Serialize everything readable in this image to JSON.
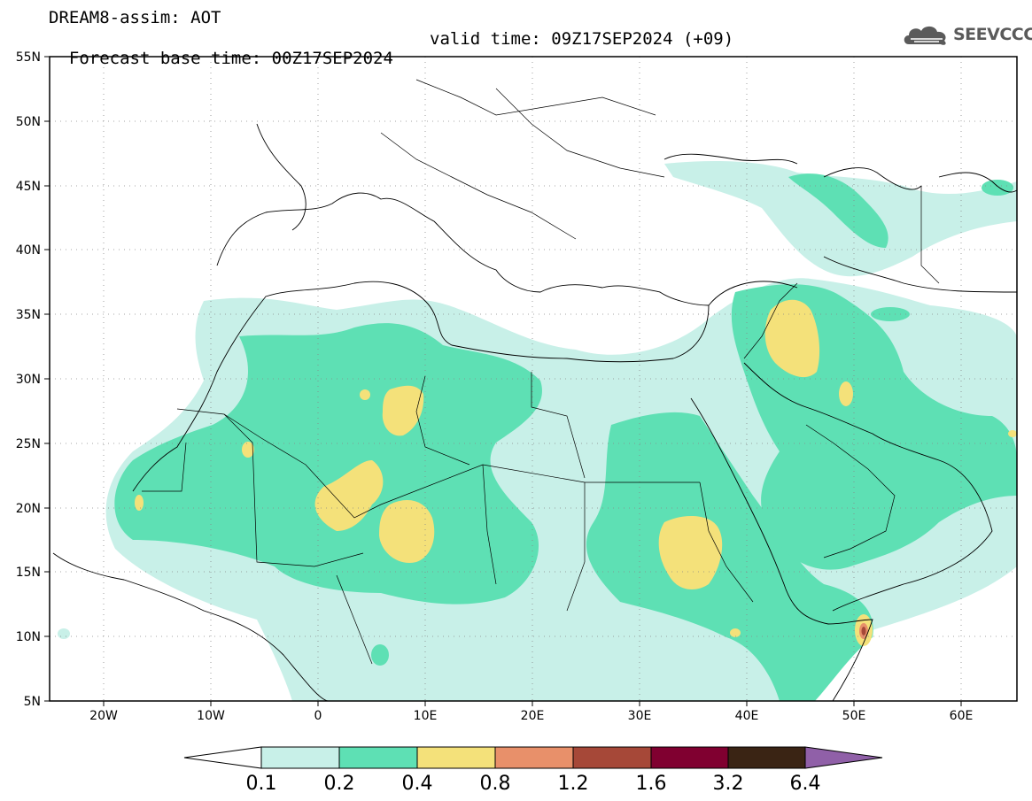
{
  "header": {
    "title": "DREAM8-assim: AOT",
    "base_time": "Forecast base time: 00Z17SEP2024",
    "valid_time": "valid time: 09Z17SEP2024 (+09)"
  },
  "logo": {
    "text": "SEEVCCC",
    "icon": "cloud-icon"
  },
  "map": {
    "lon_range": [
      -25,
      65
    ],
    "lat_range": [
      5,
      55
    ],
    "lon_ticks": [
      {
        "value": -20,
        "label": "20W"
      },
      {
        "value": -10,
        "label": "10W"
      },
      {
        "value": 0,
        "label": "0"
      },
      {
        "value": 10,
        "label": "10E"
      },
      {
        "value": 20,
        "label": "20E"
      },
      {
        "value": 30,
        "label": "30E"
      },
      {
        "value": 40,
        "label": "40E"
      },
      {
        "value": 50,
        "label": "50E"
      },
      {
        "value": 60,
        "label": "60E"
      }
    ],
    "lat_ticks": [
      {
        "value": 55,
        "label": "55N"
      },
      {
        "value": 50,
        "label": "50N"
      },
      {
        "value": 45,
        "label": "45N"
      },
      {
        "value": 40,
        "label": "40N"
      },
      {
        "value": 35,
        "label": "35N"
      },
      {
        "value": 30,
        "label": "30N"
      },
      {
        "value": 25,
        "label": "25N"
      },
      {
        "value": 20,
        "label": "20N"
      },
      {
        "value": 15,
        "label": "15N"
      },
      {
        "value": 10,
        "label": "10N"
      },
      {
        "value": 5,
        "label": "5N"
      }
    ],
    "grid": "dotted"
  },
  "colorbar": {
    "levels": [
      "0.1",
      "0.2",
      "0.4",
      "0.8",
      "1.2",
      "1.6",
      "3.2",
      "6.4"
    ],
    "colors": [
      "#ffffff",
      "#c8f0e8",
      "#5ee0b4",
      "#f4e17a",
      "#e8906a",
      "#a64838",
      "#800030",
      "#3a2414",
      "#9060a8"
    ]
  }
}
